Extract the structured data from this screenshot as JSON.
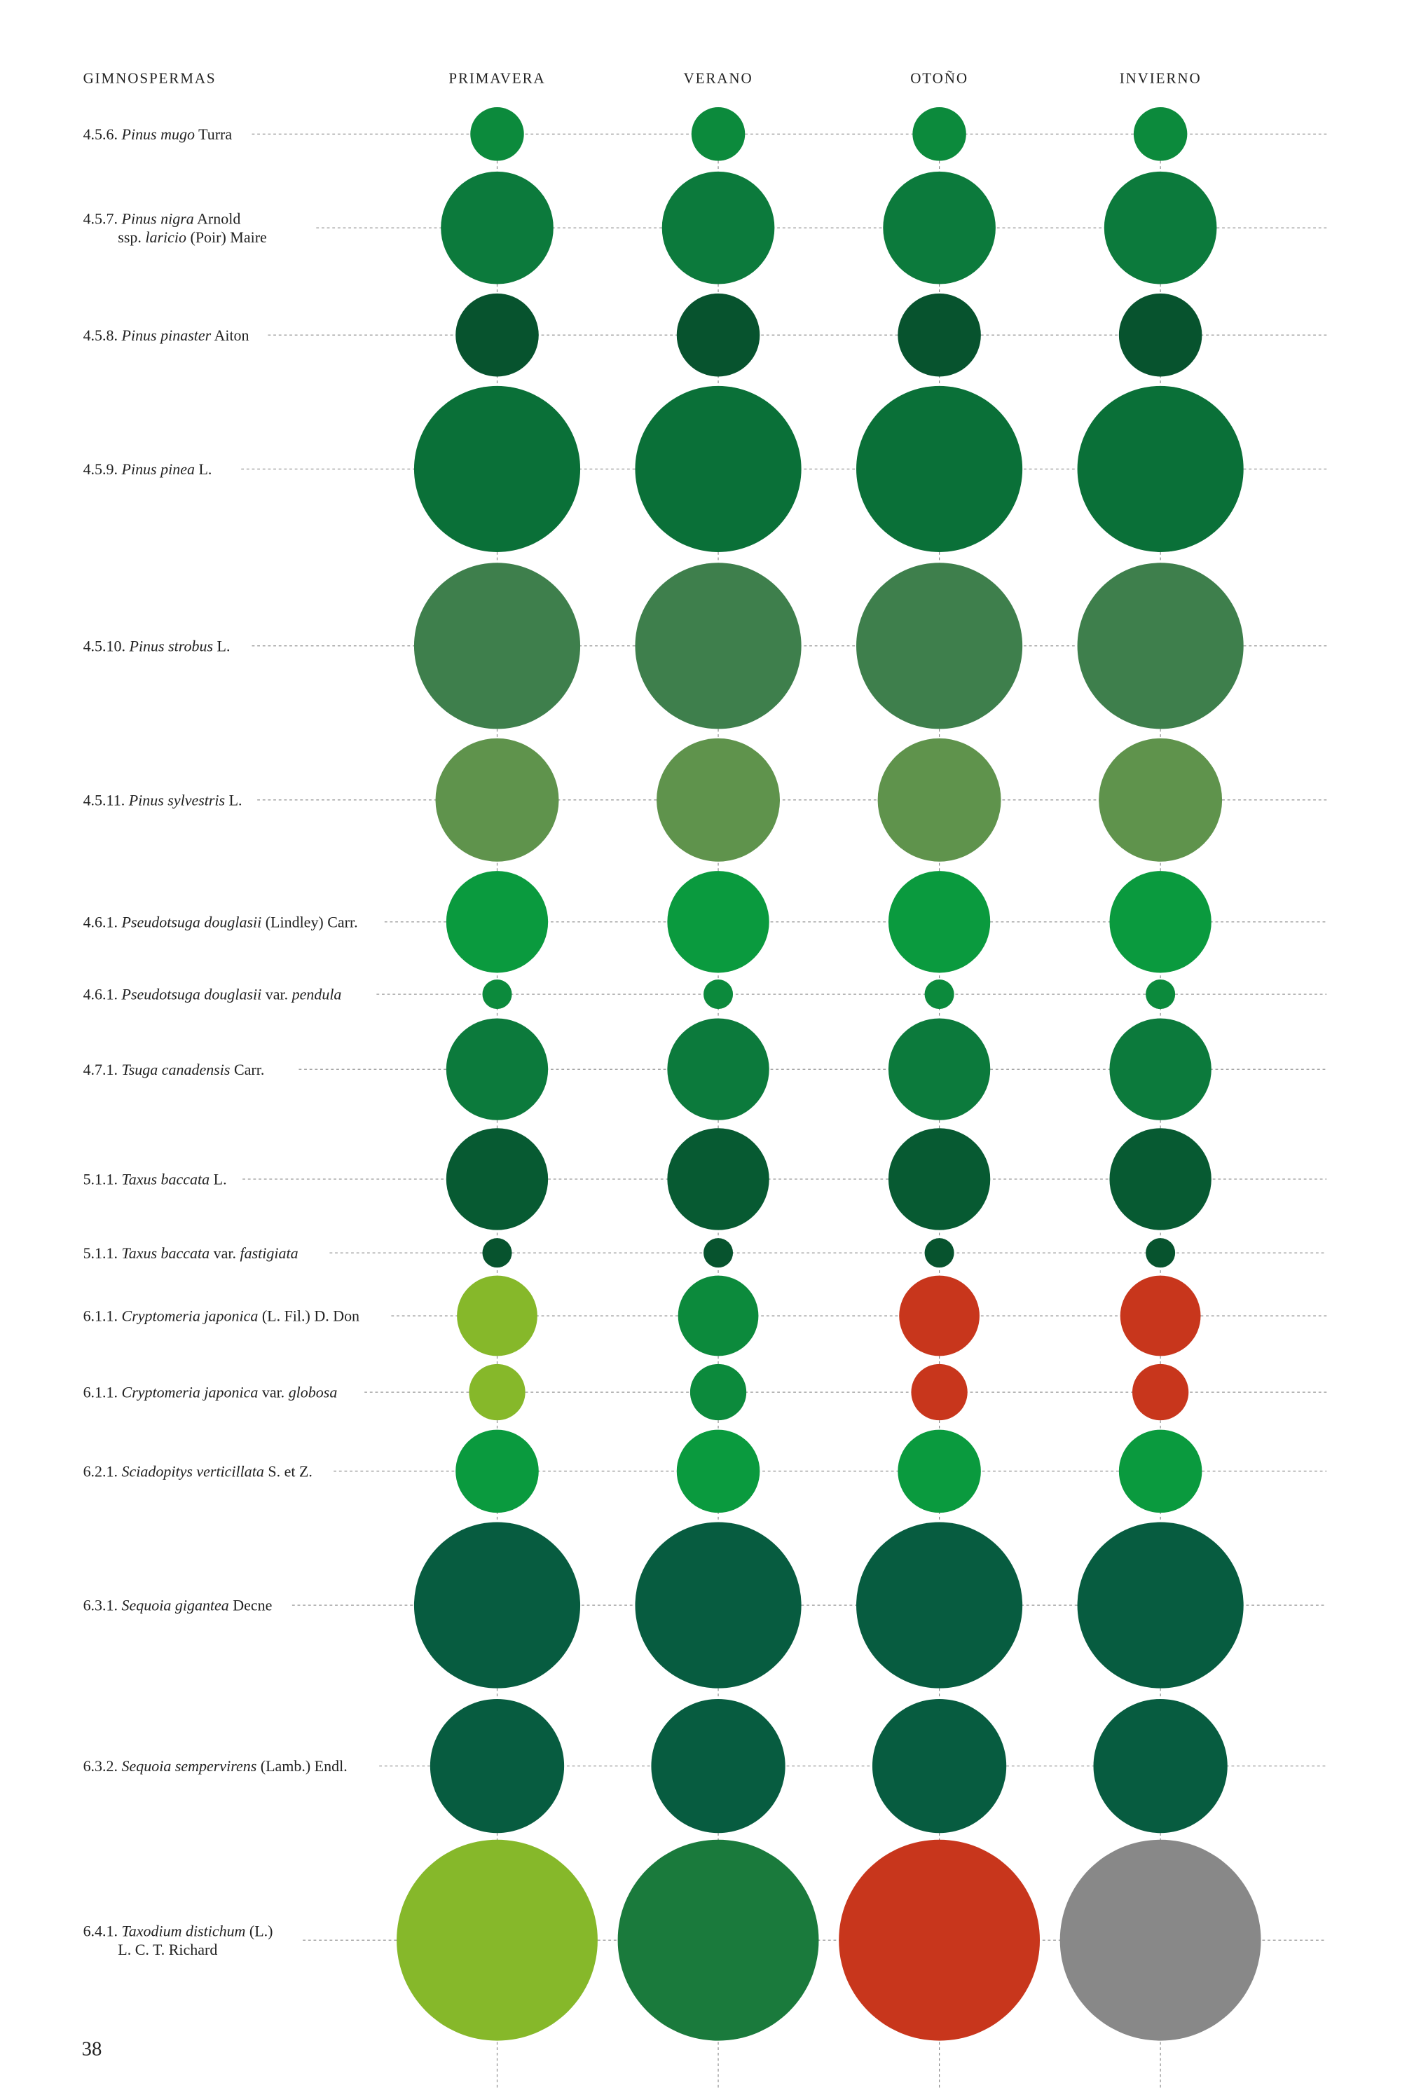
{
  "colors": {
    "light_lime": "#86b82a",
    "forest": "#1a7a3c",
    "bright": "#0a9a3e",
    "medium": "#0c8a3c",
    "pinea": "#0a7038",
    "dark": "#0a5a34",
    "teal_dark": "#075c40",
    "strobus": "#3e7f4c",
    "sylvestris": "#5f934c",
    "red": "#c8361c",
    "gray": "#888888"
  },
  "chart_data": {
    "type": "bubble-matrix",
    "header": "GIMNOSPERMAS",
    "columns": [
      "PRIMAVERA",
      "VERANO",
      "OTOÑO",
      "INVIERNO"
    ],
    "page_number": "38",
    "rows": [
      {
        "parts": [
          [
            "4.5.6. ",
            false
          ],
          [
            "Pinus mugo",
            true
          ],
          [
            " Turra",
            false
          ]
        ],
        "size": 20,
        "colors": [
          "#0c8a3c",
          "#0c8a3c",
          "#0c8a3c",
          "#0c8a3c"
        ]
      },
      {
        "parts": [
          [
            "4.5.7. ",
            false
          ],
          [
            "Pinus nigra",
            true
          ],
          [
            " Arnold",
            false
          ]
        ],
        "parts2": [
          [
            "ssp. ",
            false
          ],
          [
            "laricio",
            true
          ],
          [
            " (Poir) Maire",
            false
          ]
        ],
        "size": 42,
        "colors": [
          "#0c7a3c",
          "#0c7a3c",
          "#0c7a3c",
          "#0c7a3c"
        ]
      },
      {
        "parts": [
          [
            "4.5.8. ",
            false
          ],
          [
            "Pinus pinaster",
            true
          ],
          [
            " Aiton",
            false
          ]
        ],
        "size": 31,
        "colors": [
          "#07532e",
          "#07532e",
          "#07532e",
          "#07532e"
        ]
      },
      {
        "parts": [
          [
            "4.5.9. ",
            false
          ],
          [
            "Pinus pinea",
            true
          ],
          [
            " L.",
            false
          ]
        ],
        "size": 62,
        "colors": [
          "#0a7038",
          "#0a7038",
          "#0a7038",
          "#0a7038"
        ]
      },
      {
        "parts": [
          [
            "4.5.10. ",
            false
          ],
          [
            "Pinus strobus",
            true
          ],
          [
            " L.",
            false
          ]
        ],
        "size": 62,
        "colors": [
          "#3e7f4c",
          "#3e7f4c",
          "#3e7f4c",
          "#3e7f4c"
        ]
      },
      {
        "parts": [
          [
            "4.5.11. ",
            false
          ],
          [
            "Pinus sylvestris",
            true
          ],
          [
            " L.",
            false
          ]
        ],
        "size": 46,
        "colors": [
          "#5f934c",
          "#5f934c",
          "#5f934c",
          "#5f934c"
        ]
      },
      {
        "parts": [
          [
            "4.6.1. ",
            false
          ],
          [
            "Pseudotsuga douglasii",
            true
          ],
          [
            " (Lindley) Carr.",
            false
          ]
        ],
        "size": 38,
        "colors": [
          "#0a9a3e",
          "#0a9a3e",
          "#0a9a3e",
          "#0a9a3e"
        ]
      },
      {
        "parts": [
          [
            "4.6.1. ",
            false
          ],
          [
            "Pseudotsuga douglasii",
            true
          ],
          [
            " var. ",
            false
          ],
          [
            "pendula",
            true
          ]
        ],
        "size": 11,
        "colors": [
          "#0c8a3c",
          "#0c8a3c",
          "#0c8a3c",
          "#0c8a3c"
        ]
      },
      {
        "parts": [
          [
            "4.7.1. ",
            false
          ],
          [
            "Tsuga canadensis",
            true
          ],
          [
            " Carr.",
            false
          ]
        ],
        "size": 38,
        "colors": [
          "#0c7a3c",
          "#0c7a3c",
          "#0c7a3c",
          "#0c7a3c"
        ]
      },
      {
        "parts": [
          [
            "5.1.1. ",
            false
          ],
          [
            "Taxus baccata",
            true
          ],
          [
            " L.",
            false
          ]
        ],
        "size": 38,
        "colors": [
          "#075a32",
          "#075a32",
          "#075a32",
          "#075a32"
        ]
      },
      {
        "parts": [
          [
            "5.1.1. ",
            false
          ],
          [
            "Taxus baccata",
            true
          ],
          [
            " var. ",
            false
          ],
          [
            "fastigiata",
            true
          ]
        ],
        "size": 11,
        "colors": [
          "#07532e",
          "#07532e",
          "#07532e",
          "#07532e"
        ]
      },
      {
        "parts": [
          [
            "6.1.1. ",
            false
          ],
          [
            "Cryptomeria japonica",
            true
          ],
          [
            " (L. Fil.) D. Don",
            false
          ]
        ],
        "size": 30,
        "colors": [
          "#86b82a",
          "#0c8a3c",
          "#c8361c",
          "#c8361c"
        ]
      },
      {
        "parts": [
          [
            "6.1.1. ",
            false
          ],
          [
            "Cryptomeria japonica",
            true
          ],
          [
            " var. ",
            false
          ],
          [
            "globosa",
            true
          ]
        ],
        "size": 21,
        "colors": [
          "#86b82a",
          "#0c8a3c",
          "#c8361c",
          "#c8361c"
        ]
      },
      {
        "parts": [
          [
            "6.2.1. ",
            false
          ],
          [
            "Sciadopitys verticillata",
            true
          ],
          [
            " S. et Z.",
            false
          ]
        ],
        "size": 31,
        "colors": [
          "#0a9a3e",
          "#0a9a3e",
          "#0a9a3e",
          "#0a9a3e"
        ]
      },
      {
        "parts": [
          [
            "6.3.1. ",
            false
          ],
          [
            "Sequoia gigantea",
            true
          ],
          [
            " Decne",
            false
          ]
        ],
        "size": 62,
        "colors": [
          "#075c40",
          "#075c40",
          "#075c40",
          "#075c40"
        ]
      },
      {
        "parts": [
          [
            "6.3.2. ",
            false
          ],
          [
            "Sequoia sempervirens",
            true
          ],
          [
            " (Lamb.) Endl.",
            false
          ]
        ],
        "size": 50,
        "colors": [
          "#075c40",
          "#075c40",
          "#075c40",
          "#075c40"
        ]
      },
      {
        "parts": [
          [
            "6.4.1. ",
            false
          ],
          [
            "Taxodium distichum",
            true
          ],
          [
            " (L.)",
            false
          ]
        ],
        "parts2": [
          [
            "L. C. T. Richard",
            false
          ]
        ],
        "size": 75,
        "colors": [
          "#86b82a",
          "#1a7a3c",
          "#c8361c",
          "#888888"
        ]
      }
    ]
  }
}
